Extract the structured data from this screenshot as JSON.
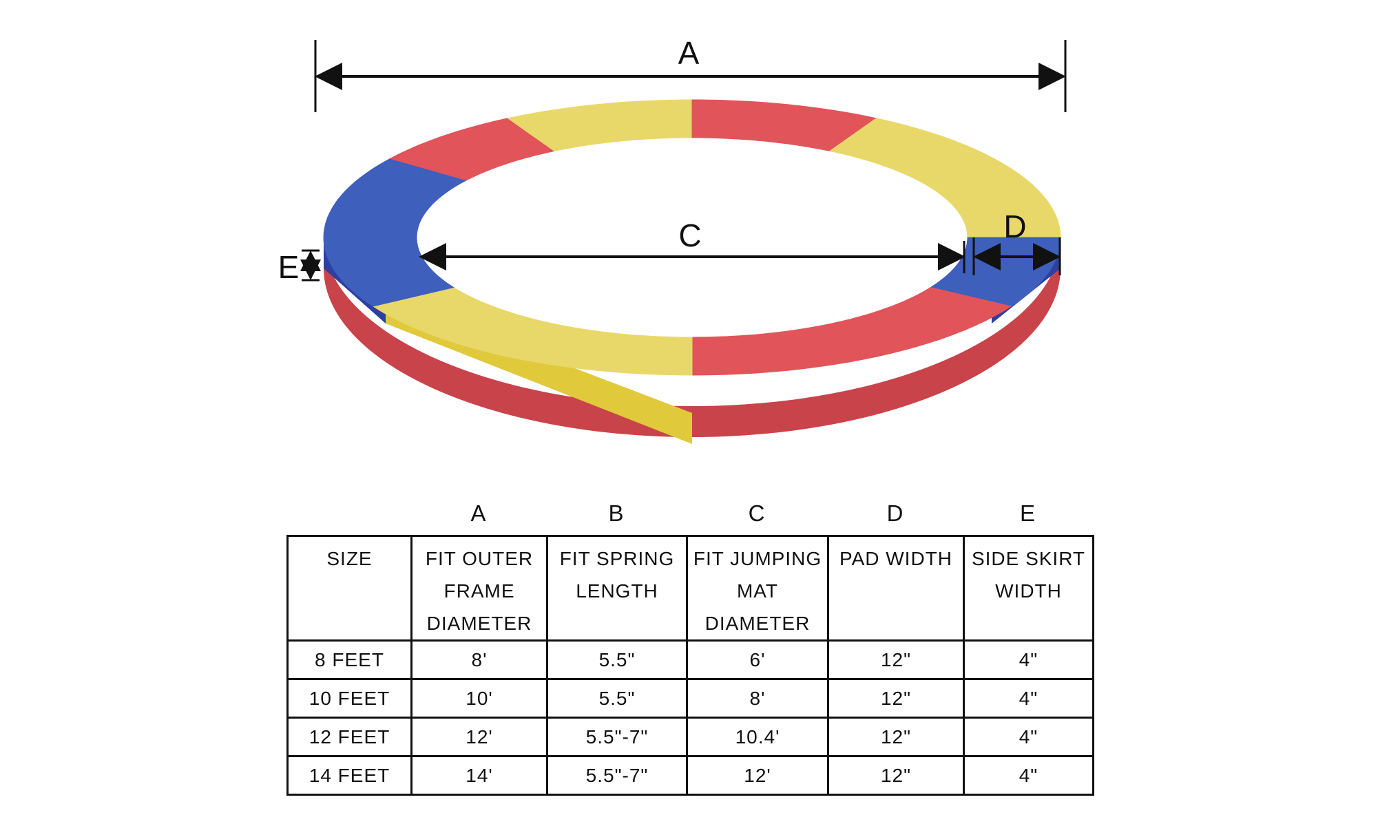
{
  "diagram": {
    "labels": {
      "a": "A",
      "c": "C",
      "d": "D",
      "e": "E"
    },
    "colors": {
      "yellow": "#e8d86a",
      "red": "#e0545a",
      "blue": "#3f5fbd",
      "line": "#111111"
    }
  },
  "table": {
    "column_letters": [
      "",
      "A",
      "B",
      "C",
      "D",
      "E"
    ],
    "headers": [
      "SIZE",
      "FIT OUTER FRAME DIAMETER",
      "FIT SPRING LENGTH",
      "FIT JUMPING MAT DIAMETER",
      "PAD WIDTH",
      "SIDE SKIRT WIDTH"
    ],
    "rows": [
      [
        "8 FEET",
        "8'",
        "5.5\"",
        "6'",
        "12\"",
        "4\""
      ],
      [
        "10 FEET",
        "10'",
        "5.5\"",
        "8'",
        "12\"",
        "4\""
      ],
      [
        "12 FEET",
        "12'",
        "5.5\"-7\"",
        "10.4'",
        "12\"",
        "4\""
      ],
      [
        "14 FEET",
        "14'",
        "5.5\"-7\"",
        "12'",
        "12\"",
        "4\""
      ]
    ]
  }
}
